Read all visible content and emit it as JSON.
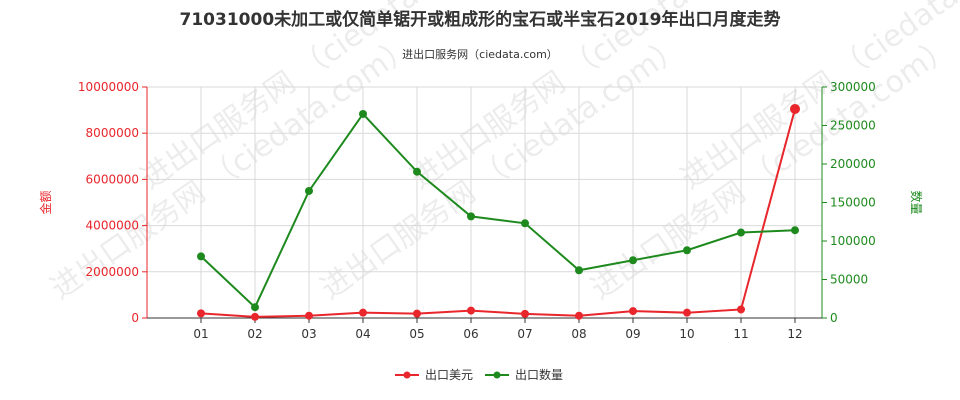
{
  "title": "71031000未加工或仅简单锯开或粗成形的宝石或半宝石2019年出口月度走势",
  "subtitle": "进出口服务网（ciedata.com）",
  "watermark": "进出口服务网 （ciedata.com）",
  "colors": {
    "left_axis": "#e8262b",
    "right_axis": "#1e8a1e",
    "grid": "#d9d9d9",
    "title": "#333333"
  },
  "chart_data": {
    "type": "line",
    "categories": [
      "01",
      "02",
      "03",
      "04",
      "05",
      "06",
      "07",
      "08",
      "09",
      "10",
      "11",
      "12"
    ],
    "y_left": {
      "label": "金额",
      "range": [
        0,
        10000000
      ],
      "ticks": [
        0,
        2000000,
        4000000,
        6000000,
        8000000,
        10000000
      ],
      "tick_labels": [
        "0",
        "2000000",
        "4000000",
        "6000000",
        "8000000",
        "10000000"
      ]
    },
    "y_right": {
      "label": "数量",
      "range": [
        0,
        300000
      ],
      "ticks": [
        0,
        50000,
        100000,
        150000,
        200000,
        250000,
        300000
      ],
      "tick_labels": [
        "0",
        "50000",
        "100000",
        "150000",
        "200000",
        "250000",
        "300000"
      ]
    },
    "series": [
      {
        "name": "出口美元",
        "axis": "left",
        "color": "#e8262b",
        "values": [
          200000,
          50000,
          100000,
          230000,
          190000,
          320000,
          180000,
          100000,
          300000,
          230000,
          370000,
          9050000
        ]
      },
      {
        "name": "出口数量",
        "axis": "right",
        "color": "#1e8a1e",
        "values": [
          80000,
          14000,
          165000,
          265000,
          190000,
          132000,
          123000,
          62000,
          75000,
          88000,
          111000,
          114000
        ]
      }
    ],
    "grid": true,
    "legend_position": "bottom-center"
  }
}
